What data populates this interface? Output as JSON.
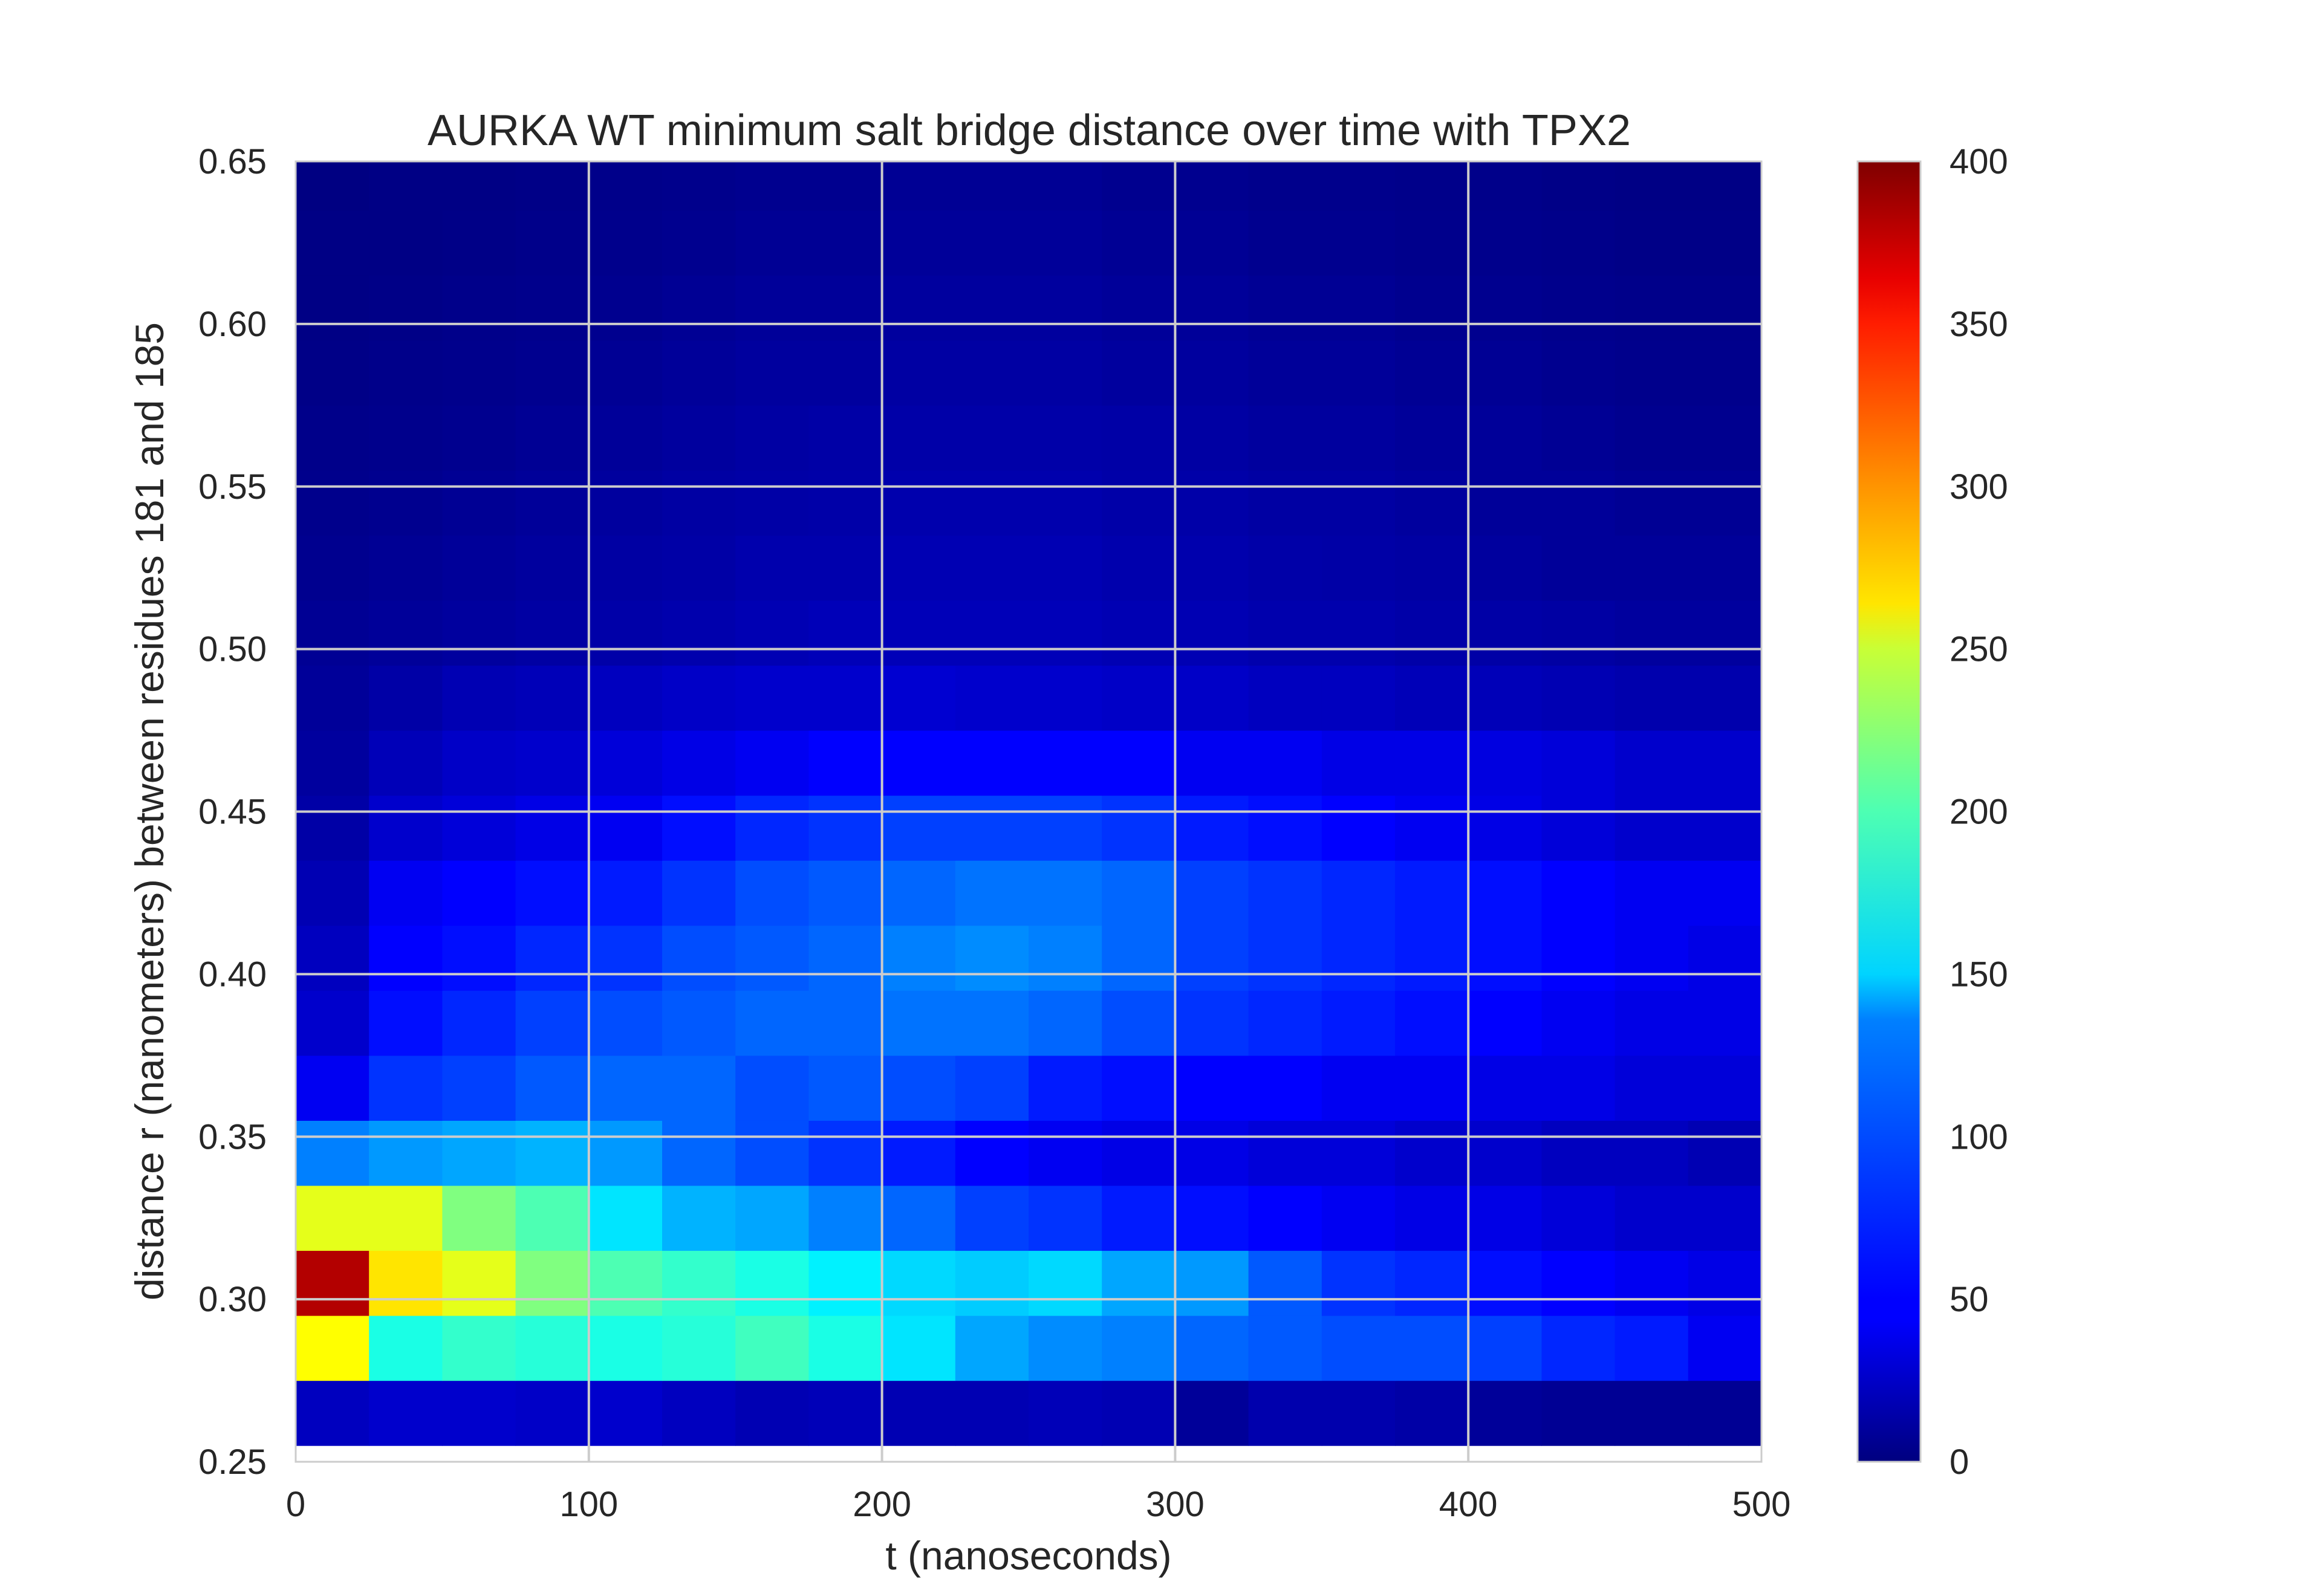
{
  "chart_data": {
    "type": "heatmap",
    "title": "AURKA WT minimum salt bridge distance over time with TPX2",
    "xlabel": "t (nanoseconds)",
    "ylabel": "distance r (nanometers) between residues 181 and 185",
    "xlim": [
      0,
      500
    ],
    "ylim": [
      0.25,
      0.65
    ],
    "x_ticks": [
      "0",
      "100",
      "200",
      "300",
      "400",
      "500"
    ],
    "y_ticks": [
      "0.25",
      "0.30",
      "0.35",
      "0.40",
      "0.45",
      "0.50",
      "0.55",
      "0.60",
      "0.65"
    ],
    "grid": true,
    "colormap": "jet",
    "colorbar": {
      "vmin": 0,
      "vmax": 400,
      "ticks": [
        "0",
        "50",
        "100",
        "150",
        "200",
        "250",
        "300",
        "350",
        "400"
      ]
    },
    "y_bins": [
      0.255,
      0.275,
      0.295,
      0.315,
      0.335,
      0.355,
      0.375,
      0.395,
      0.415,
      0.435,
      0.455,
      0.475,
      0.495,
      0.515,
      0.535,
      0.555,
      0.575,
      0.595,
      0.615,
      0.635,
      0.655
    ],
    "x_bins": [
      0,
      25,
      50,
      75,
      100,
      125,
      150,
      175,
      200,
      225,
      250,
      275,
      300,
      325,
      350,
      375,
      400,
      425,
      450,
      475,
      500
    ],
    "values": [
      [
        25,
        30,
        30,
        28,
        30,
        25,
        20,
        22,
        20,
        20,
        22,
        20,
        10,
        18,
        18,
        15,
        10,
        8,
        8,
        8
      ],
      [
        250,
        160,
        170,
        165,
        160,
        165,
        175,
        160,
        140,
        115,
        105,
        100,
        90,
        85,
        80,
        80,
        75,
        65,
        60,
        45
      ],
      [
        380,
        260,
        240,
        200,
        180,
        170,
        160,
        145,
        135,
        130,
        135,
        115,
        110,
        85,
        70,
        65,
        55,
        50,
        45,
        40
      ],
      [
        240,
        240,
        200,
        180,
        140,
        120,
        115,
        100,
        90,
        75,
        70,
        60,
        55,
        50,
        45,
        40,
        40,
        35,
        30,
        30
      ],
      [
        100,
        110,
        115,
        120,
        110,
        90,
        80,
        70,
        60,
        50,
        45,
        40,
        40,
        35,
        35,
        30,
        30,
        25,
        25,
        20
      ],
      [
        45,
        70,
        75,
        85,
        90,
        90,
        80,
        85,
        80,
        75,
        60,
        55,
        50,
        50,
        45,
        45,
        40,
        40,
        35,
        35
      ],
      [
        30,
        55,
        65,
        75,
        80,
        85,
        90,
        90,
        95,
        95,
        90,
        80,
        70,
        65,
        60,
        55,
        50,
        45,
        40,
        40
      ],
      [
        25,
        50,
        55,
        65,
        70,
        80,
        85,
        90,
        100,
        105,
        100,
        90,
        75,
        70,
        65,
        60,
        55,
        50,
        45,
        40
      ],
      [
        20,
        45,
        50,
        55,
        60,
        70,
        80,
        85,
        90,
        95,
        95,
        90,
        75,
        70,
        65,
        60,
        55,
        50,
        45,
        45
      ],
      [
        15,
        30,
        35,
        40,
        45,
        55,
        65,
        70,
        75,
        75,
        75,
        70,
        60,
        55,
        50,
        45,
        40,
        35,
        30,
        30
      ],
      [
        12,
        22,
        28,
        30,
        35,
        40,
        45,
        50,
        50,
        50,
        50,
        50,
        45,
        45,
        40,
        40,
        38,
        35,
        30,
        30
      ],
      [
        10,
        15,
        20,
        22,
        25,
        28,
        30,
        30,
        32,
        30,
        30,
        28,
        28,
        25,
        25,
        22,
        22,
        20,
        18,
        18
      ],
      [
        8,
        10,
        12,
        14,
        16,
        18,
        20,
        22,
        22,
        22,
        22,
        20,
        20,
        18,
        18,
        16,
        15,
        14,
        12,
        12
      ],
      [
        6,
        8,
        10,
        12,
        14,
        15,
        18,
        18,
        20,
        20,
        20,
        18,
        18,
        16,
        15,
        14,
        12,
        10,
        10,
        10
      ],
      [
        5,
        6,
        8,
        10,
        12,
        14,
        15,
        16,
        18,
        18,
        18,
        16,
        16,
        14,
        14,
        12,
        10,
        10,
        8,
        8
      ],
      [
        4,
        5,
        6,
        8,
        10,
        12,
        14,
        15,
        16,
        16,
        16,
        15,
        14,
        12,
        12,
        10,
        10,
        8,
        6,
        6
      ],
      [
        3,
        4,
        5,
        6,
        8,
        10,
        12,
        12,
        14,
        14,
        14,
        12,
        12,
        10,
        10,
        8,
        8,
        6,
        5,
        5
      ],
      [
        2,
        3,
        4,
        5,
        6,
        8,
        10,
        10,
        12,
        12,
        12,
        10,
        10,
        8,
        8,
        6,
        6,
        5,
        4,
        4
      ],
      [
        2,
        2,
        3,
        4,
        5,
        6,
        8,
        8,
        10,
        10,
        10,
        8,
        8,
        6,
        6,
        5,
        5,
        4,
        3,
        3
      ],
      [
        1,
        2,
        2,
        3,
        4,
        5,
        6,
        6,
        8,
        8,
        8,
        6,
        6,
        5,
        5,
        4,
        4,
        3,
        2,
        2
      ]
    ]
  }
}
